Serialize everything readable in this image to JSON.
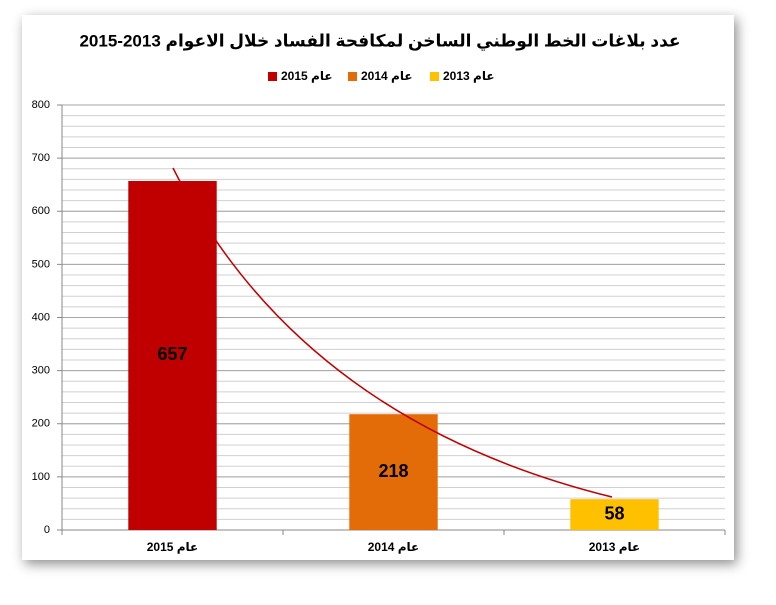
{
  "chart_data": {
    "type": "bar",
    "title": "عدد بلاغات الخط الوطني الساخن لمكافحة الفساد خلال الاعوام 2013-2015",
    "categories": [
      "عام 2015",
      "عام 2014",
      "عام 2013"
    ],
    "values": [
      657,
      218,
      58
    ],
    "colors": [
      "#c00000",
      "#e36c09",
      "#ffc000"
    ],
    "ylim": [
      0,
      800
    ],
    "yticks": [
      0,
      100,
      200,
      300,
      400,
      500,
      600,
      700,
      800
    ],
    "grid": true,
    "minor_step": 20,
    "legend": "top"
  }
}
